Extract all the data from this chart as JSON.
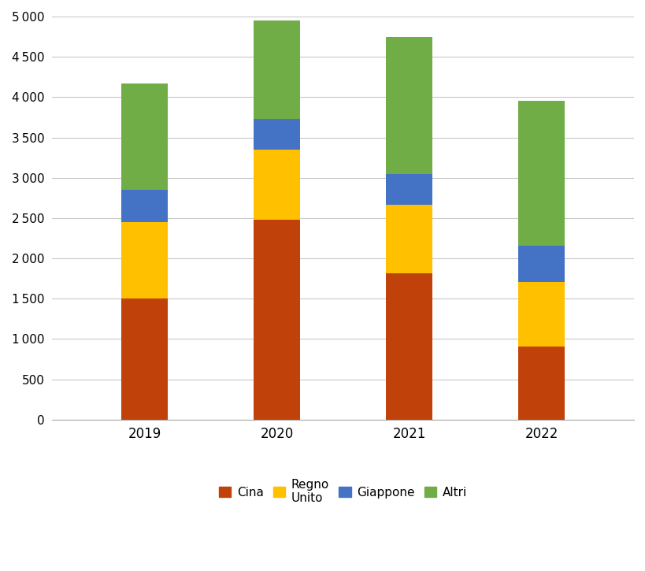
{
  "years": [
    "2019",
    "2020",
    "2021",
    "2022"
  ],
  "series": {
    "Cina": [
      1500,
      2480,
      1810,
      910
    ],
    "Regno\nUnito": [
      950,
      870,
      850,
      800
    ],
    "Giappone": [
      400,
      380,
      390,
      450
    ],
    "Altri": [
      1320,
      1220,
      1700,
      1790
    ]
  },
  "colors": {
    "Cina": "#C0410A",
    "Regno\nUnito": "#FFC000",
    "Giappone": "#4472C4",
    "Altri": "#70AD47"
  },
  "ylim": [
    0,
    5000
  ],
  "yticks": [
    0,
    500,
    1000,
    1500,
    2000,
    2500,
    3000,
    3500,
    4000,
    4500,
    5000
  ],
  "bar_width": 0.35,
  "background_color": "#ffffff",
  "grid_color": "#c8c8c8",
  "legend_labels": [
    "Cina",
    "Regno\nUnito",
    "Giappone",
    "Altri"
  ],
  "figsize": [
    8.2,
    7.25
  ],
  "dpi": 100
}
